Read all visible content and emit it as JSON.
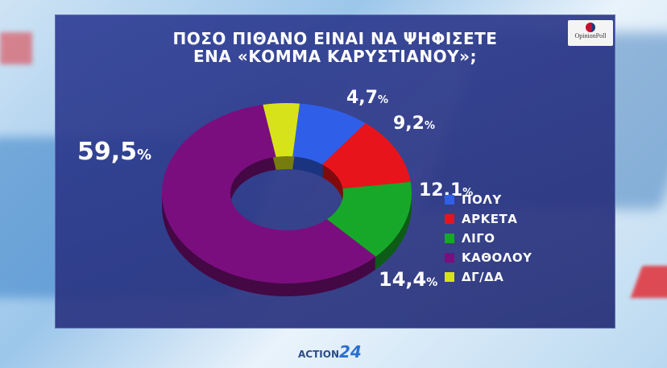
{
  "title_line1": "ΠΟΣΟ ΠΙΘΑΝΟ ΕΙΝΑΙ ΝΑ ΨΗΦΙΣΕΤΕ",
  "title_line2": "ΕΝΑ «ΚΟΜΜΑ ΚΑΡΥΣΤΙΑΝΟΥ»;",
  "logo_text": "OpinionPoll",
  "brand": {
    "name": "ACTION",
    "num": "24"
  },
  "chart_data": {
    "type": "pie",
    "subtype": "donut-3d",
    "title": "ΠΟΣΟ ΠΙΘΑΝΟ ΕΙΝΑΙ ΝΑ ΨΗΦΙΣΕΤΕ ΕΝΑ «ΚΟΜΜΑ ΚΑΡΥΣΤΙΑΝΟΥ»;",
    "legend_position": "right",
    "slices": [
      {
        "label": "ΠΟΛΥ",
        "value": 9.2,
        "display": "9,2",
        "color": "#2f5fe8"
      },
      {
        "label": "ΑΡΚΕΤΑ",
        "value": 12.1,
        "display": "12,1",
        "color": "#e8141c"
      },
      {
        "label": "ΛΙΓΟ",
        "value": 14.4,
        "display": "14,4",
        "color": "#17a82a"
      },
      {
        "label": "ΚΑΘΟΛΟΥ",
        "value": 59.5,
        "display": "59,5",
        "color": "#7b0e7e"
      },
      {
        "label": "ΔΓ/ΔΑ",
        "value": 4.7,
        "display": "4,7",
        "color": "#d8e21a"
      }
    ],
    "value_suffix": "%"
  }
}
